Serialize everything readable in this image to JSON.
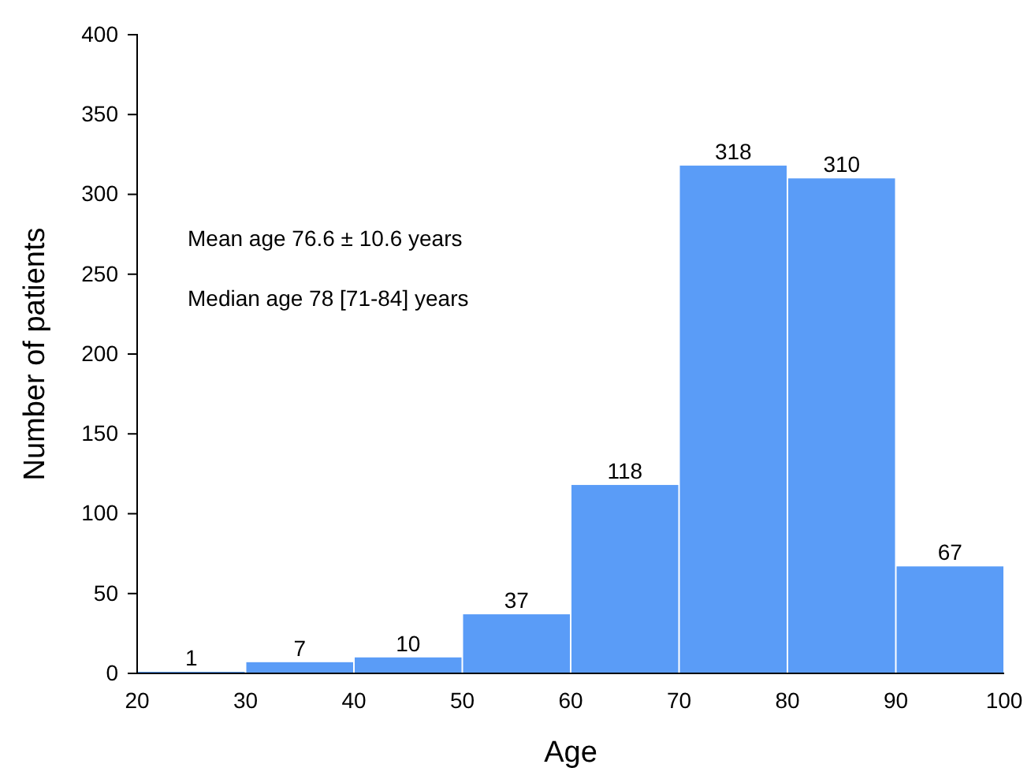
{
  "chart_data": {
    "type": "histogram",
    "xlabel": "Age",
    "ylabel": "Number of patients",
    "bins": [
      20,
      30,
      40,
      50,
      60,
      70,
      80,
      90,
      100
    ],
    "values": [
      1,
      7,
      10,
      37,
      118,
      318,
      310,
      67
    ],
    "color": "#5a9cf7",
    "xlim": [
      20,
      100
    ],
    "xticks": [
      20,
      30,
      40,
      50,
      60,
      70,
      80,
      90,
      100
    ],
    "ylim": [
      0,
      400
    ],
    "yticks": [
      0,
      50,
      100,
      150,
      200,
      250,
      300,
      350,
      400
    ],
    "grid": false,
    "data_labels": true,
    "annotations": [
      "Mean age 76.6 ± 10.6 years",
      "Median age 78 [71-84] years"
    ]
  }
}
